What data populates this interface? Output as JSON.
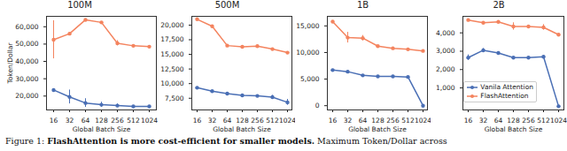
{
  "chart_data": [
    {
      "type": "line",
      "title": "100M",
      "x_label": "Global Batch Size",
      "y_label": "Token/Dollar",
      "categories": [
        "16",
        "32",
        "64",
        "128",
        "256",
        "512",
        "1024"
      ],
      "ylim": [
        12000,
        66000
      ],
      "yticks": [
        20000,
        30000,
        40000,
        50000,
        60000
      ],
      "grid": false,
      "series": [
        {
          "name": "Vanila Attention",
          "color": "#4a6fb5",
          "marker": "circle",
          "values": [
            23500,
            19500,
            16000,
            15000,
            14500,
            14000,
            14000
          ],
          "errors": [
            0,
            4000,
            2500,
            1500,
            1000,
            0,
            0
          ]
        },
        {
          "name": "FlashAttention",
          "color": "#f4845f",
          "marker": "circle",
          "values": [
            52500,
            56000,
            64000,
            62500,
            50500,
            49000,
            48500
          ],
          "errors": [
            11000,
            0,
            0,
            0,
            1500,
            0,
            0
          ]
        }
      ]
    },
    {
      "type": "line",
      "title": "500M",
      "x_label": "Global Batch Size",
      "categories": [
        "16",
        "32",
        "64",
        "128",
        "256",
        "512",
        "1024"
      ],
      "ylim": [
        5500,
        21500
      ],
      "yticks": [
        7500,
        10000,
        12500,
        15000,
        17500,
        20000
      ],
      "grid": false,
      "series": [
        {
          "name": "Vanila Attention",
          "color": "#4a6fb5",
          "marker": "circle",
          "values": [
            9300,
            8700,
            8300,
            8000,
            7900,
            7700,
            6800
          ],
          "errors": [
            0,
            0,
            0,
            0,
            0,
            300,
            500
          ]
        },
        {
          "name": "FlashAttention",
          "color": "#f4845f",
          "marker": "circle",
          "values": [
            21000,
            19800,
            16500,
            16300,
            16400,
            15900,
            15300
          ],
          "errors": [
            0,
            0,
            0,
            0,
            0,
            0,
            0
          ]
        }
      ]
    },
    {
      "type": "line",
      "title": "1B",
      "x_label": "Global Batch Size",
      "categories": [
        "16",
        "32",
        "64",
        "128",
        "256",
        "512",
        "1024"
      ],
      "ylim": [
        -800,
        16800
      ],
      "yticks": [
        0,
        5000,
        10000,
        15000
      ],
      "grid": false,
      "series": [
        {
          "name": "Vanila Attention",
          "color": "#4a6fb5",
          "marker": "circle",
          "values": [
            6700,
            6400,
            5700,
            5500,
            5500,
            5400,
            0
          ],
          "errors": [
            0,
            0,
            0,
            0,
            0,
            0,
            0
          ]
        },
        {
          "name": "FlashAttention",
          "color": "#f4845f",
          "marker": "circle",
          "values": [
            15800,
            12800,
            12700,
            11200,
            10800,
            10600,
            10300
          ],
          "errors": [
            0,
            1000,
            500,
            0,
            0,
            0,
            0
          ]
        }
      ]
    },
    {
      "type": "line",
      "title": "2B",
      "x_label": "Global Batch Size",
      "categories": [
        "16",
        "32",
        "64",
        "128",
        "256",
        "512",
        "1024"
      ],
      "ylim": [
        -200,
        4900
      ],
      "yticks": [
        1000,
        2000,
        3000,
        4000
      ],
      "grid": false,
      "legend": "lower right",
      "series": [
        {
          "name": "Vanila Attention",
          "color": "#4a6fb5",
          "marker": "circle",
          "values": [
            2650,
            3050,
            2900,
            2650,
            2650,
            2700,
            0
          ],
          "errors": [
            150,
            100,
            0,
            0,
            0,
            0,
            0
          ]
        },
        {
          "name": "FlashAttention",
          "color": "#f4845f",
          "marker": "circle",
          "values": [
            4700,
            4550,
            4600,
            4350,
            4350,
            4300,
            3900
          ],
          "errors": [
            0,
            0,
            0,
            200,
            0,
            150,
            0
          ]
        }
      ]
    }
  ],
  "caption": {
    "label": "Figure 1:",
    "bold": "FlashAttention is more cost-efficient for smaller models.",
    "text": "Maximum Token/Dollar across"
  }
}
